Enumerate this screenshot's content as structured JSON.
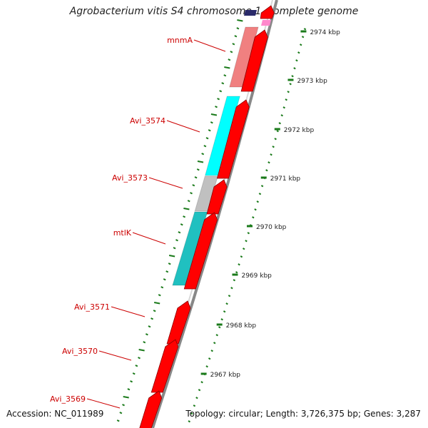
{
  "title": "Agrobacterium vitis S4 chromosome 1, complete genome",
  "accession": "Accession: NC_011989",
  "summary": "Topology: circular; Length: 3,726,375 bp; Genes: 3,287",
  "ticks": [
    {
      "label": "2974 kbp"
    },
    {
      "label": "2973 kbp"
    },
    {
      "label": "2972 kbp"
    },
    {
      "label": "2971 kbp"
    },
    {
      "label": "2970 kbp"
    },
    {
      "label": "2969 kbp"
    },
    {
      "label": "2968 kbp"
    },
    {
      "label": "2967 kbp"
    }
  ],
  "genes": [
    {
      "name": "mnmA"
    },
    {
      "name": "Avi_3574"
    },
    {
      "name": "Avi_3573"
    },
    {
      "name": "mtlK"
    },
    {
      "name": "Avi_3571"
    },
    {
      "name": "Avi_3570"
    },
    {
      "name": "Avi_3569"
    }
  ],
  "colors": {
    "cds": "#ff0000",
    "label": "#cc0000",
    "tick": "#1a7a1a",
    "backbone": "#888888",
    "mnmA": "#f08080",
    "Avi_3574": "#00ffff",
    "Avi_3573": "#c0c0c0",
    "mtlK": "#20c0c0"
  }
}
